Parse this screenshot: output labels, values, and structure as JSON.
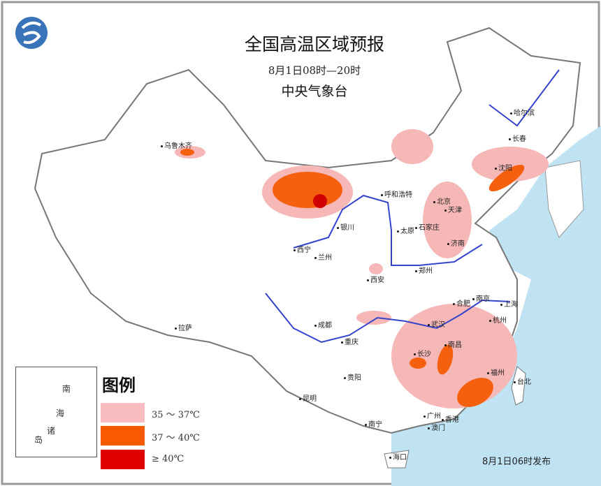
{
  "title": "全国高温区域预报",
  "subtitle": "8月1日08时—20时",
  "issuer": "中央气象台",
  "published": "8月1日06时发布",
  "logo": "cma-logo",
  "colors": {
    "ocean": "#bfe3f3",
    "level1": "#f6b7b7",
    "level2": "#f4600e",
    "level3": "#e00000",
    "river": "#3344cc"
  },
  "legend": {
    "title": "图例",
    "items": [
      {
        "label": "35 ～ 37℃",
        "color": "#f9bcc0"
      },
      {
        "label": "37 ～ 40℃",
        "color": "#f85a00"
      },
      {
        "label": "≥ 40℃",
        "color": "#e00000"
      }
    ]
  },
  "inset": {
    "labels": [
      "南",
      "海",
      "诸",
      "岛"
    ]
  },
  "cities": [
    "乌鲁木齐",
    "哈尔滨",
    "长春",
    "沈阳",
    "呼和浩特",
    "北京",
    "天津",
    "石家庄",
    "太原",
    "银川",
    "济南",
    "西宁",
    "兰州",
    "郑州",
    "西安",
    "合肥",
    "南京",
    "上海",
    "武汉",
    "杭州",
    "成都",
    "重庆",
    "南昌",
    "长沙",
    "拉萨",
    "贵阳",
    "福州",
    "台北",
    "昆明",
    "南宁",
    "广州",
    "香港",
    "澳门",
    "海口"
  ]
}
